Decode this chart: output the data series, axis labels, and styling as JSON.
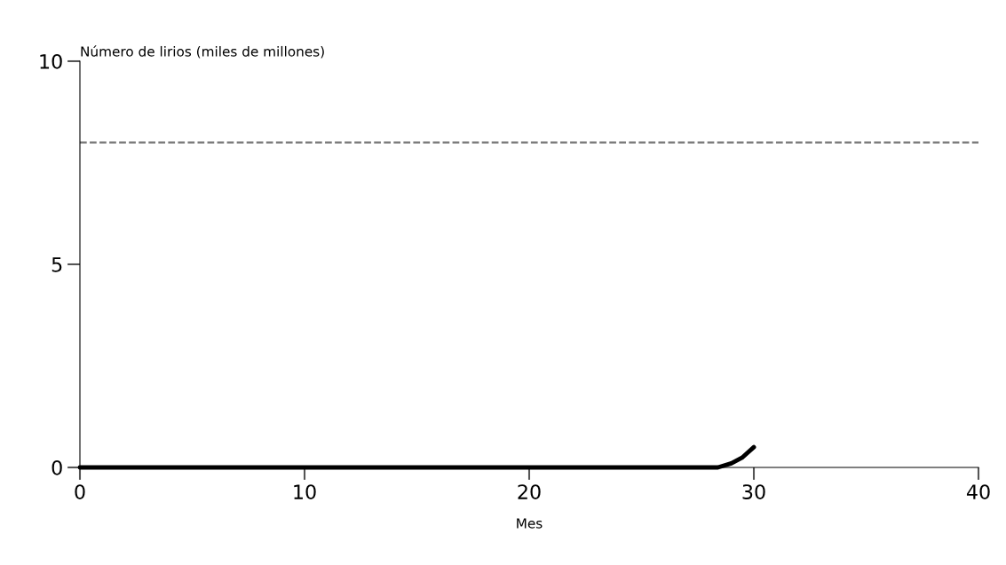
{
  "chart_data": {
    "type": "line",
    "ylabel": "Número de lirios (miles de millones)",
    "xlabel": "Mes",
    "x": [
      0,
      28.4,
      29,
      29.5,
      30
    ],
    "series": [
      {
        "color": "#000000",
        "values": [
          0,
          0,
          0.1,
          0.25,
          0.5
        ]
      }
    ],
    "xlim": [
      0,
      40
    ],
    "xticks": [
      0,
      10,
      20,
      30,
      40
    ],
    "ylim": [
      0,
      10
    ],
    "yticks": [
      0,
      5,
      10
    ],
    "ref_lines": [
      {
        "axis": "y",
        "value": 8,
        "color": "#777777",
        "line_style": "dashed"
      }
    ],
    "grid": false,
    "legend": false,
    "marker": "none",
    "line_style": "solid"
  }
}
